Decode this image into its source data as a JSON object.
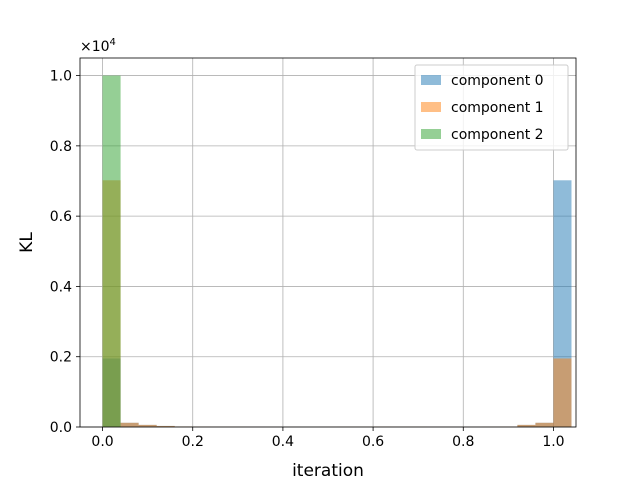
{
  "chart_data": {
    "type": "bar",
    "subtype": "histogram",
    "xlabel": "iteration",
    "ylabel": "KL",
    "y_offset_base": "×10",
    "y_offset_exp": "4",
    "xlim": [
      -0.05,
      1.05
    ],
    "ylim": [
      0,
      10500
    ],
    "xticks": [
      0.0,
      0.2,
      0.4,
      0.6,
      0.8,
      1.0
    ],
    "xtick_labels": [
      "0.0",
      "0.2",
      "0.4",
      "0.6",
      "0.8",
      "1.0"
    ],
    "yticks": [
      0,
      2000,
      4000,
      6000,
      8000,
      10000
    ],
    "ytick_labels": [
      "0.0",
      "0.2",
      "0.4",
      "0.6",
      "0.8",
      "1.0"
    ],
    "grid": true,
    "legend_position": "top-right",
    "bin_start": 0.0,
    "bin_width": 0.04,
    "series": [
      {
        "name": "component 0",
        "color": "#1f77b4",
        "values": [
          1950,
          120,
          60,
          30,
          15,
          10,
          8,
          6,
          5,
          4,
          4,
          3,
          4,
          6,
          8,
          10,
          8,
          6,
          5,
          4,
          4,
          6,
          10,
          60,
          120,
          7020
        ]
      },
      {
        "name": "component 1",
        "color": "#ff7f0e",
        "values": [
          7020,
          120,
          60,
          30,
          15,
          10,
          8,
          6,
          5,
          4,
          4,
          3,
          4,
          6,
          8,
          10,
          8,
          6,
          5,
          4,
          4,
          6,
          10,
          60,
          120,
          1950
        ]
      },
      {
        "name": "component 2",
        "color": "#2ca02c",
        "values": [
          10000,
          0,
          0,
          0,
          0,
          0,
          0,
          0,
          0,
          0,
          0,
          0,
          0,
          0,
          0,
          0,
          0,
          0,
          0,
          0,
          0,
          0,
          0,
          0,
          0,
          0
        ]
      }
    ]
  }
}
